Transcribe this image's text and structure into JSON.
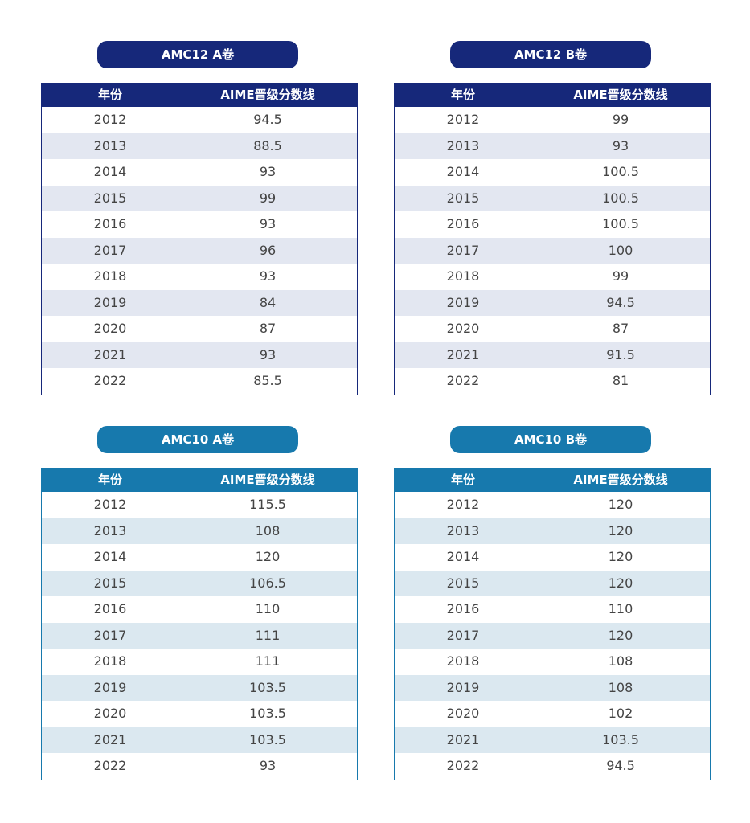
{
  "header": {
    "year_label": "年份",
    "score_label": "AIME晋级分数线"
  },
  "tables": [
    {
      "title": "AMC12 A卷",
      "rows": [
        {
          "year": "2012",
          "score": "94.5"
        },
        {
          "year": "2013",
          "score": "88.5"
        },
        {
          "year": "2014",
          "score": "93"
        },
        {
          "year": "2015",
          "score": "99"
        },
        {
          "year": "2016",
          "score": "93"
        },
        {
          "year": "2017",
          "score": "96"
        },
        {
          "year": "2018",
          "score": "93"
        },
        {
          "year": "2019",
          "score": "84"
        },
        {
          "year": "2020",
          "score": "87"
        },
        {
          "year": "2021",
          "score": "93"
        },
        {
          "year": "2022",
          "score": "85.5"
        }
      ]
    },
    {
      "title": "AMC12 B卷",
      "rows": [
        {
          "year": "2012",
          "score": "99"
        },
        {
          "year": "2013",
          "score": "93"
        },
        {
          "year": "2014",
          "score": "100.5"
        },
        {
          "year": "2015",
          "score": "100.5"
        },
        {
          "year": "2016",
          "score": "100.5"
        },
        {
          "year": "2017",
          "score": "100"
        },
        {
          "year": "2018",
          "score": "99"
        },
        {
          "year": "2019",
          "score": "94.5"
        },
        {
          "year": "2020",
          "score": "87"
        },
        {
          "year": "2021",
          "score": "91.5"
        },
        {
          "year": "2022",
          "score": "81"
        }
      ]
    },
    {
      "title": "AMC10 A卷",
      "rows": [
        {
          "year": "2012",
          "score": "115.5"
        },
        {
          "year": "2013",
          "score": "108"
        },
        {
          "year": "2014",
          "score": "120"
        },
        {
          "year": "2015",
          "score": "106.5"
        },
        {
          "year": "2016",
          "score": "110"
        },
        {
          "year": "2017",
          "score": "111"
        },
        {
          "year": "2018",
          "score": "111"
        },
        {
          "year": "2019",
          "score": "103.5"
        },
        {
          "year": "2020",
          "score": "103.5"
        },
        {
          "year": "2021",
          "score": "103.5"
        },
        {
          "year": "2022",
          "score": "93"
        }
      ]
    },
    {
      "title": "AMC10 B卷",
      "rows": [
        {
          "year": "2012",
          "score": "120"
        },
        {
          "year": "2013",
          "score": "120"
        },
        {
          "year": "2014",
          "score": "120"
        },
        {
          "year": "2015",
          "score": "120"
        },
        {
          "year": "2016",
          "score": "110"
        },
        {
          "year": "2017",
          "score": "120"
        },
        {
          "year": "2018",
          "score": "108"
        },
        {
          "year": "2019",
          "score": "108"
        },
        {
          "year": "2020",
          "score": "102"
        },
        {
          "year": "2021",
          "score": "103.5"
        },
        {
          "year": "2022",
          "score": "94.5"
        }
      ]
    }
  ],
  "colors": {
    "amc12_navy": "#16287a",
    "amc12_stripe": "#e3e7f1",
    "amc10_teal": "#1779ad",
    "amc10_stripe": "#dbe8f0"
  }
}
